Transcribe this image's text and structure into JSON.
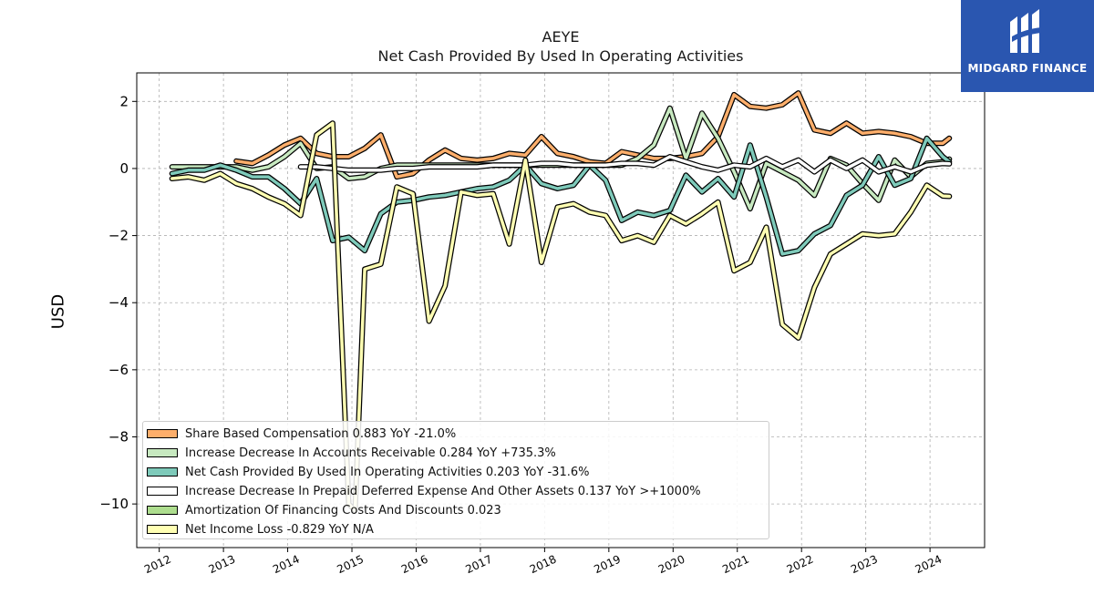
{
  "brand": {
    "name": "MIDGARD FINANCE",
    "logo_icon": "midgard-logo-icon",
    "color": "#2a56b0"
  },
  "chart_data": {
    "type": "line",
    "title": "AEYE",
    "subtitle": "Net Cash Provided By Used In Operating Activities",
    "xlabel": "",
    "ylabel": "USD",
    "xlim": [
      2011.65,
      2024.85
    ],
    "ylim": [
      -11.3,
      2.85
    ],
    "x_ticks": [
      "2012",
      "2013",
      "2014",
      "2015",
      "2016",
      "2017",
      "2018",
      "2019",
      "2020",
      "2021",
      "2022",
      "2023",
      "2024"
    ],
    "y_ticks": [
      2,
      0,
      -2,
      -4,
      -6,
      -8,
      -10
    ],
    "y_tick_labels": [
      "2",
      "0",
      "−2",
      "−4",
      "−6",
      "−8",
      "−10"
    ],
    "grid": true,
    "legend_position": "lower-left",
    "series": [
      {
        "name": "Share Based Compensation  0.883 YoY -21.0%",
        "color": "#fdae6b",
        "points": [
          [
            2013.2,
            0.22
          ],
          [
            2013.45,
            0.15
          ],
          [
            2013.7,
            0.4
          ],
          [
            2013.95,
            0.7
          ],
          [
            2014.2,
            0.9
          ],
          [
            2014.45,
            0.45
          ],
          [
            2014.7,
            0.35
          ],
          [
            2014.95,
            0.35
          ],
          [
            2015.2,
            0.6
          ],
          [
            2015.45,
            1.0
          ],
          [
            2015.7,
            -0.25
          ],
          [
            2015.95,
            -0.15
          ],
          [
            2016.2,
            0.25
          ],
          [
            2016.45,
            0.55
          ],
          [
            2016.7,
            0.3
          ],
          [
            2016.95,
            0.25
          ],
          [
            2017.2,
            0.3
          ],
          [
            2017.45,
            0.45
          ],
          [
            2017.7,
            0.4
          ],
          [
            2017.95,
            0.95
          ],
          [
            2018.2,
            0.45
          ],
          [
            2018.45,
            0.35
          ],
          [
            2018.7,
            0.2
          ],
          [
            2018.95,
            0.15
          ],
          [
            2019.2,
            0.5
          ],
          [
            2019.45,
            0.4
          ],
          [
            2019.7,
            0.3
          ],
          [
            2019.95,
            0.3
          ],
          [
            2020.2,
            0.35
          ],
          [
            2020.45,
            0.45
          ],
          [
            2020.7,
            0.95
          ],
          [
            2020.95,
            2.2
          ],
          [
            2021.2,
            1.85
          ],
          [
            2021.45,
            1.8
          ],
          [
            2021.7,
            1.9
          ],
          [
            2021.95,
            2.25
          ],
          [
            2022.2,
            1.15
          ],
          [
            2022.45,
            1.05
          ],
          [
            2022.7,
            1.35
          ],
          [
            2022.95,
            1.05
          ],
          [
            2023.2,
            1.1
          ],
          [
            2023.45,
            1.05
          ],
          [
            2023.7,
            0.95
          ],
          [
            2023.95,
            0.75
          ],
          [
            2024.2,
            0.75
          ],
          [
            2024.3,
            0.9
          ]
        ]
      },
      {
        "name": "Increase Decrease In Accounts Receivable  0.284 YoY +735.3%",
        "color": "#c7e9c0",
        "points": [
          [
            2012.2,
            0.05
          ],
          [
            2012.45,
            0.05
          ],
          [
            2012.7,
            0.05
          ],
          [
            2012.95,
            0.05
          ],
          [
            2013.2,
            0.05
          ],
          [
            2013.45,
            -0.05
          ],
          [
            2013.7,
            0.05
          ],
          [
            2013.95,
            0.35
          ],
          [
            2014.2,
            0.75
          ],
          [
            2014.45,
            0.0
          ],
          [
            2014.7,
            0.05
          ],
          [
            2014.95,
            -0.3
          ],
          [
            2015.2,
            -0.25
          ],
          [
            2015.45,
            0.0
          ],
          [
            2015.7,
            0.1
          ],
          [
            2015.95,
            0.1
          ],
          [
            2016.2,
            0.1
          ],
          [
            2016.45,
            0.1
          ],
          [
            2016.7,
            0.1
          ],
          [
            2016.95,
            0.1
          ],
          [
            2017.2,
            0.1
          ],
          [
            2017.45,
            0.1
          ],
          [
            2017.7,
            0.1
          ],
          [
            2017.95,
            0.1
          ],
          [
            2018.2,
            0.1
          ],
          [
            2018.45,
            0.1
          ],
          [
            2018.7,
            0.1
          ],
          [
            2018.95,
            0.1
          ],
          [
            2019.2,
            0.1
          ],
          [
            2019.45,
            0.3
          ],
          [
            2019.7,
            0.7
          ],
          [
            2019.95,
            1.8
          ],
          [
            2020.2,
            0.3
          ],
          [
            2020.45,
            1.65
          ],
          [
            2020.7,
            0.9
          ],
          [
            2020.95,
            -0.1
          ],
          [
            2021.2,
            -1.2
          ],
          [
            2021.45,
            0.15
          ],
          [
            2021.7,
            -0.1
          ],
          [
            2021.95,
            -0.35
          ],
          [
            2022.2,
            -0.8
          ],
          [
            2022.45,
            0.3
          ],
          [
            2022.7,
            0.1
          ],
          [
            2022.95,
            -0.45
          ],
          [
            2023.2,
            -0.95
          ],
          [
            2023.45,
            0.25
          ],
          [
            2023.7,
            -0.25
          ],
          [
            2023.95,
            0.15
          ],
          [
            2024.2,
            0.2
          ],
          [
            2024.3,
            0.28
          ]
        ]
      },
      {
        "name": "Net Cash Provided By Used In Operating Activities  0.203 YoY -31.6%",
        "color": "#7ecaba",
        "points": [
          [
            2012.2,
            -0.15
          ],
          [
            2012.45,
            -0.05
          ],
          [
            2012.7,
            -0.05
          ],
          [
            2012.95,
            0.1
          ],
          [
            2013.2,
            -0.05
          ],
          [
            2013.45,
            -0.25
          ],
          [
            2013.7,
            -0.25
          ],
          [
            2013.95,
            -0.6
          ],
          [
            2014.2,
            -1.05
          ],
          [
            2014.45,
            -0.3
          ],
          [
            2014.7,
            -2.15
          ],
          [
            2014.95,
            -2.05
          ],
          [
            2015.2,
            -2.45
          ],
          [
            2015.45,
            -1.35
          ],
          [
            2015.7,
            -1.0
          ],
          [
            2015.95,
            -0.95
          ],
          [
            2016.2,
            -0.85
          ],
          [
            2016.45,
            -0.8
          ],
          [
            2016.7,
            -0.7
          ],
          [
            2016.95,
            -0.6
          ],
          [
            2017.2,
            -0.55
          ],
          [
            2017.45,
            -0.35
          ],
          [
            2017.7,
            0.1
          ],
          [
            2017.95,
            -0.45
          ],
          [
            2018.2,
            -0.6
          ],
          [
            2018.45,
            -0.5
          ],
          [
            2018.7,
            0.1
          ],
          [
            2018.95,
            -0.35
          ],
          [
            2019.2,
            -1.55
          ],
          [
            2019.45,
            -1.3
          ],
          [
            2019.7,
            -1.4
          ],
          [
            2019.95,
            -1.25
          ],
          [
            2020.2,
            -0.2
          ],
          [
            2020.45,
            -0.7
          ],
          [
            2020.7,
            -0.3
          ],
          [
            2020.95,
            -0.85
          ],
          [
            2021.2,
            0.7
          ],
          [
            2021.45,
            -0.85
          ],
          [
            2021.7,
            -2.55
          ],
          [
            2021.95,
            -2.45
          ],
          [
            2022.2,
            -1.95
          ],
          [
            2022.45,
            -1.7
          ],
          [
            2022.7,
            -0.8
          ],
          [
            2022.95,
            -0.5
          ],
          [
            2023.2,
            0.35
          ],
          [
            2023.45,
            -0.5
          ],
          [
            2023.7,
            -0.3
          ],
          [
            2023.95,
            0.9
          ],
          [
            2024.2,
            0.35
          ],
          [
            2024.3,
            0.2
          ]
        ]
      },
      {
        "name": "Increase Decrease In Prepaid Deferred Expense And Other Assets  0.137 YoY >+1000%",
        "color": "#ffffff",
        "points": [
          [
            2014.2,
            0.05
          ],
          [
            2014.45,
            0.05
          ],
          [
            2014.7,
            0.0
          ],
          [
            2014.95,
            -0.05
          ],
          [
            2015.2,
            -0.05
          ],
          [
            2015.45,
            -0.05
          ],
          [
            2015.7,
            0.0
          ],
          [
            2015.95,
            0.0
          ],
          [
            2016.2,
            0.05
          ],
          [
            2016.45,
            0.05
          ],
          [
            2016.7,
            0.05
          ],
          [
            2016.95,
            0.05
          ],
          [
            2017.2,
            0.1
          ],
          [
            2017.45,
            0.1
          ],
          [
            2017.7,
            0.1
          ],
          [
            2017.95,
            0.15
          ],
          [
            2018.2,
            0.15
          ],
          [
            2018.45,
            0.1
          ],
          [
            2018.7,
            0.1
          ],
          [
            2018.95,
            0.1
          ],
          [
            2019.2,
            0.15
          ],
          [
            2019.45,
            0.15
          ],
          [
            2019.7,
            0.1
          ],
          [
            2019.95,
            0.35
          ],
          [
            2020.2,
            0.2
          ],
          [
            2020.45,
            0.05
          ],
          [
            2020.7,
            -0.05
          ],
          [
            2020.95,
            0.1
          ],
          [
            2021.2,
            0.05
          ],
          [
            2021.45,
            0.3
          ],
          [
            2021.7,
            0.05
          ],
          [
            2021.95,
            0.25
          ],
          [
            2022.2,
            -0.1
          ],
          [
            2022.45,
            0.25
          ],
          [
            2022.7,
            0.0
          ],
          [
            2022.95,
            0.25
          ],
          [
            2023.2,
            -0.1
          ],
          [
            2023.45,
            0.05
          ],
          [
            2023.7,
            -0.1
          ],
          [
            2023.95,
            0.1
          ],
          [
            2024.2,
            0.15
          ],
          [
            2024.3,
            0.14
          ]
        ]
      },
      {
        "name": "Amortization Of Financing Costs And Discounts  0.023",
        "color": "#addd8e",
        "points": []
      },
      {
        "name": "Net Income Loss  -0.829 YoY N/A",
        "color": "#ffffb3",
        "points": [
          [
            2012.2,
            -0.3
          ],
          [
            2012.45,
            -0.25
          ],
          [
            2012.7,
            -0.35
          ],
          [
            2012.95,
            -0.15
          ],
          [
            2013.2,
            -0.45
          ],
          [
            2013.45,
            -0.6
          ],
          [
            2013.7,
            -0.85
          ],
          [
            2013.95,
            -1.05
          ],
          [
            2014.2,
            -1.4
          ],
          [
            2014.45,
            1.0
          ],
          [
            2014.7,
            1.35
          ],
          [
            2014.95,
            -10.0
          ],
          [
            2015.05,
            -10.2
          ],
          [
            2015.2,
            -3.0
          ],
          [
            2015.45,
            -2.85
          ],
          [
            2015.7,
            -0.55
          ],
          [
            2015.95,
            -0.75
          ],
          [
            2016.2,
            -4.55
          ],
          [
            2016.45,
            -3.5
          ],
          [
            2016.7,
            -0.7
          ],
          [
            2016.95,
            -0.8
          ],
          [
            2017.2,
            -0.75
          ],
          [
            2017.45,
            -2.25
          ],
          [
            2017.7,
            0.25
          ],
          [
            2017.95,
            -2.8
          ],
          [
            2018.2,
            -1.15
          ],
          [
            2018.45,
            -1.05
          ],
          [
            2018.7,
            -1.3
          ],
          [
            2018.95,
            -1.4
          ],
          [
            2019.2,
            -2.15
          ],
          [
            2019.45,
            -2.0
          ],
          [
            2019.7,
            -2.2
          ],
          [
            2019.95,
            -1.4
          ],
          [
            2020.2,
            -1.65
          ],
          [
            2020.45,
            -1.35
          ],
          [
            2020.7,
            -1.0
          ],
          [
            2020.95,
            -3.05
          ],
          [
            2021.2,
            -2.8
          ],
          [
            2021.45,
            -1.75
          ],
          [
            2021.7,
            -4.65
          ],
          [
            2021.95,
            -5.05
          ],
          [
            2022.2,
            -3.55
          ],
          [
            2022.45,
            -2.55
          ],
          [
            2022.7,
            -2.25
          ],
          [
            2022.95,
            -1.95
          ],
          [
            2023.2,
            -2.0
          ],
          [
            2023.45,
            -1.95
          ],
          [
            2023.7,
            -1.3
          ],
          [
            2023.95,
            -0.5
          ],
          [
            2024.2,
            -0.82
          ],
          [
            2024.3,
            -0.83
          ]
        ]
      }
    ]
  }
}
